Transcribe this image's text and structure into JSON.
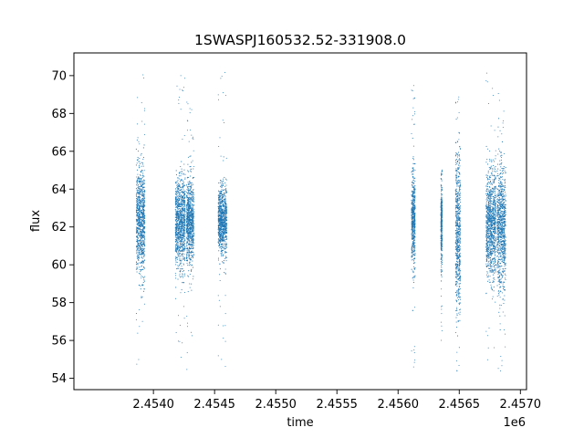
{
  "chart_data": {
    "type": "scatter",
    "title": "1SWASPJ160532.52-331908.0",
    "xlabel": "time",
    "ylabel": "flux",
    "x_offset_label": "1e6",
    "xlim": [
      2453350,
      2457050
    ],
    "ylim": [
      53.4,
      71.2
    ],
    "x_ticks": [
      2.454,
      2.4545,
      2.455,
      2.4555,
      2.456,
      2.4565,
      2.457
    ],
    "x_tick_labels": [
      "2.4540",
      "2.4545",
      "2.4550",
      "2.4555",
      "2.4560",
      "2.4565",
      "2.4570"
    ],
    "y_ticks": [
      54,
      56,
      58,
      60,
      62,
      64,
      66,
      68,
      70
    ],
    "y_tick_labels": [
      "54",
      "56",
      "58",
      "60",
      "62",
      "64",
      "66",
      "68",
      "70"
    ],
    "grid": false,
    "marker_color": "#1f77b4",
    "series": [
      {
        "clusters": [
          {
            "x_start": 2453860,
            "x_end": 2453930,
            "y_center": 62.3,
            "y_spread": 1.4,
            "y_min": 54.4,
            "y_max": 70.1
          },
          {
            "x_start": 2454180,
            "x_end": 2454260,
            "y_center": 62.2,
            "y_spread": 1.2,
            "y_min": 54.5,
            "y_max": 70.1
          },
          {
            "x_start": 2454270,
            "x_end": 2454330,
            "y_center": 62.3,
            "y_spread": 1.1,
            "y_min": 54.4,
            "y_max": 68.6
          },
          {
            "x_start": 2454530,
            "x_end": 2454600,
            "y_center": 62.3,
            "y_spread": 0.9,
            "y_min": 54.4,
            "y_max": 70.4
          },
          {
            "x_start": 2456110,
            "x_end": 2456140,
            "y_center": 62.4,
            "y_spread": 1.3,
            "y_min": 54.3,
            "y_max": 69.8
          },
          {
            "x_start": 2456350,
            "x_end": 2456360,
            "y_center": 62.2,
            "y_spread": 1.0,
            "y_min": 55.7,
            "y_max": 65.5
          },
          {
            "x_start": 2456470,
            "x_end": 2456510,
            "y_center": 61.8,
            "y_spread": 2.1,
            "y_min": 54.3,
            "y_max": 70.4
          },
          {
            "x_start": 2456720,
            "x_end": 2456800,
            "y_center": 62.1,
            "y_spread": 1.4,
            "y_min": 54.4,
            "y_max": 70.3
          },
          {
            "x_start": 2456810,
            "x_end": 2456880,
            "y_center": 62.0,
            "y_spread": 1.6,
            "y_min": 54.3,
            "y_max": 70.3
          }
        ]
      }
    ]
  }
}
